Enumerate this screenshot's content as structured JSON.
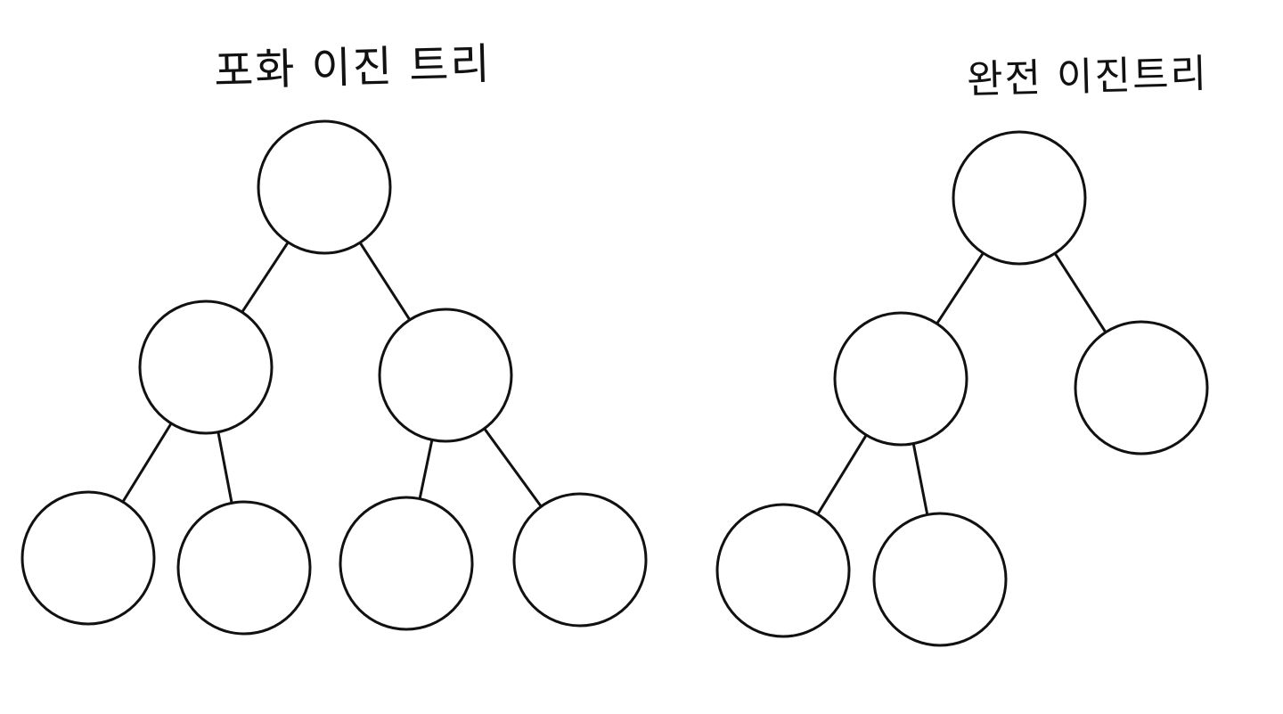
{
  "titles": {
    "full_binary_tree": "포화 이진 트리",
    "complete_binary_tree": "완전 이진트리"
  },
  "colors": {
    "stroke": "#111111",
    "background": "#ffffff"
  },
  "trees": [
    {
      "id": "full",
      "nodes": [
        "root",
        "l",
        "r",
        "ll",
        "lr",
        "rl",
        "rr"
      ],
      "edges": [
        [
          "root",
          "l"
        ],
        [
          "root",
          "r"
        ],
        [
          "l",
          "ll"
        ],
        [
          "l",
          "lr"
        ],
        [
          "r",
          "rl"
        ],
        [
          "r",
          "rr"
        ]
      ]
    },
    {
      "id": "complete",
      "nodes": [
        "root",
        "l",
        "r",
        "ll",
        "lr"
      ],
      "edges": [
        [
          "root",
          "l"
        ],
        [
          "root",
          "r"
        ],
        [
          "l",
          "ll"
        ],
        [
          "l",
          "lr"
        ]
      ]
    }
  ]
}
